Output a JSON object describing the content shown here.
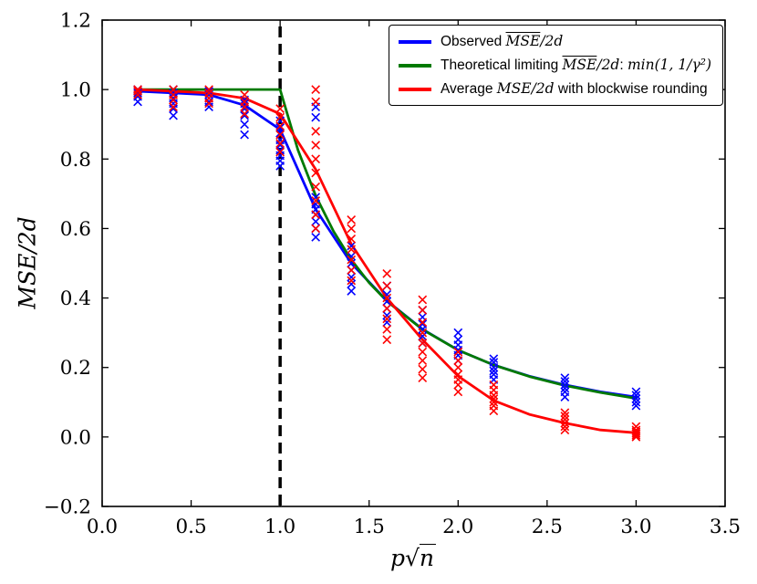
{
  "figure": {
    "background": "#ffffff"
  },
  "chart_data": {
    "type": "line",
    "title": "",
    "xlabel_parts": {
      "var": "p",
      "radical": "√",
      "radicand": "n"
    },
    "ylabel": "MSE/2d",
    "xlim": [
      0,
      3.5
    ],
    "ylim": [
      -0.2,
      1.2
    ],
    "xticks": [
      0,
      0.5,
      1.0,
      1.5,
      2.0,
      2.5,
      3.0,
      3.5
    ],
    "xtick_labels": [
      "0.0",
      "0.5",
      "1.0",
      "1.5",
      "2.0",
      "2.5",
      "3.0",
      "3.5"
    ],
    "yticks": [
      -0.2,
      0.0,
      0.2,
      0.4,
      0.6,
      0.8,
      1.0,
      1.2
    ],
    "ytick_labels": [
      "−0.2",
      "0.0",
      "0.2",
      "0.4",
      "0.6",
      "0.8",
      "1.0",
      "1.2"
    ],
    "grid": false,
    "vline": {
      "x": 1.0,
      "color": "#000000",
      "style": "dashed",
      "width": 3.5
    },
    "series": [
      {
        "name": "observed",
        "color": "#0000ff",
        "width": 2.8,
        "points": [
          [
            0.2,
            0.995
          ],
          [
            0.4,
            0.99
          ],
          [
            0.6,
            0.985
          ],
          [
            0.8,
            0.955
          ],
          [
            1.0,
            0.885
          ],
          [
            1.2,
            0.655
          ],
          [
            1.4,
            0.5
          ],
          [
            1.6,
            0.392
          ],
          [
            1.8,
            0.31
          ],
          [
            2.0,
            0.25
          ],
          [
            2.2,
            0.207
          ],
          [
            2.4,
            0.175
          ],
          [
            2.6,
            0.15
          ],
          [
            2.8,
            0.13
          ],
          [
            3.0,
            0.115
          ]
        ]
      },
      {
        "name": "theoretical",
        "color": "#007a00",
        "width": 2.8,
        "points": [
          [
            0.2,
            1.0
          ],
          [
            0.4,
            1.0
          ],
          [
            0.6,
            1.0
          ],
          [
            0.8,
            1.0
          ],
          [
            1.0,
            1.0
          ],
          [
            1.1,
            0.826
          ],
          [
            1.2,
            0.694
          ],
          [
            1.3,
            0.592
          ],
          [
            1.4,
            0.51
          ],
          [
            1.5,
            0.444
          ],
          [
            1.6,
            0.391
          ],
          [
            1.8,
            0.309
          ],
          [
            2.0,
            0.25
          ],
          [
            2.2,
            0.207
          ],
          [
            2.4,
            0.174
          ],
          [
            2.6,
            0.148
          ],
          [
            2.8,
            0.128
          ],
          [
            3.0,
            0.111
          ]
        ]
      },
      {
        "name": "blockwise-rounding",
        "color": "#ff0000",
        "width": 2.8,
        "points": [
          [
            0.2,
            1.0
          ],
          [
            0.4,
            0.995
          ],
          [
            0.6,
            0.99
          ],
          [
            0.8,
            0.975
          ],
          [
            1.0,
            0.93
          ],
          [
            1.2,
            0.77
          ],
          [
            1.4,
            0.555
          ],
          [
            1.6,
            0.4
          ],
          [
            1.8,
            0.28
          ],
          [
            2.0,
            0.175
          ],
          [
            2.2,
            0.105
          ],
          [
            2.4,
            0.065
          ],
          [
            2.6,
            0.04
          ],
          [
            2.8,
            0.02
          ],
          [
            3.0,
            0.012
          ]
        ]
      }
    ],
    "scatter": [
      {
        "name": "observed-samples",
        "color": "#0000ff",
        "marker": "x",
        "points": [
          [
            0.2,
            0.965
          ],
          [
            0.2,
            0.98
          ],
          [
            0.2,
            0.99
          ],
          [
            0.2,
            0.995
          ],
          [
            0.2,
            1.0
          ],
          [
            0.4,
            0.925
          ],
          [
            0.4,
            0.945
          ],
          [
            0.4,
            0.96
          ],
          [
            0.4,
            0.975
          ],
          [
            0.4,
            0.99
          ],
          [
            0.4,
            1.0
          ],
          [
            0.6,
            0.95
          ],
          [
            0.6,
            0.965
          ],
          [
            0.6,
            0.975
          ],
          [
            0.6,
            0.985
          ],
          [
            0.6,
            0.995
          ],
          [
            0.8,
            0.87
          ],
          [
            0.8,
            0.9
          ],
          [
            0.8,
            0.925
          ],
          [
            0.8,
            0.945
          ],
          [
            0.8,
            0.96
          ],
          [
            0.8,
            0.97
          ],
          [
            1.0,
            0.78
          ],
          [
            1.0,
            0.795
          ],
          [
            1.0,
            0.81
          ],
          [
            1.0,
            0.825
          ],
          [
            1.0,
            0.84
          ],
          [
            1.0,
            0.855
          ],
          [
            1.0,
            0.875
          ],
          [
            1.0,
            0.89
          ],
          [
            1.0,
            0.91
          ],
          [
            1.2,
            0.575
          ],
          [
            1.2,
            0.6
          ],
          [
            1.2,
            0.62
          ],
          [
            1.2,
            0.64
          ],
          [
            1.2,
            0.655
          ],
          [
            1.2,
            0.67
          ],
          [
            1.2,
            0.69
          ],
          [
            1.2,
            0.92
          ],
          [
            1.2,
            0.95
          ],
          [
            1.4,
            0.42
          ],
          [
            1.4,
            0.44
          ],
          [
            1.4,
            0.46
          ],
          [
            1.4,
            0.48
          ],
          [
            1.4,
            0.5
          ],
          [
            1.4,
            0.52
          ],
          [
            1.4,
            0.55
          ],
          [
            1.6,
            0.33
          ],
          [
            1.6,
            0.35
          ],
          [
            1.6,
            0.37
          ],
          [
            1.6,
            0.39
          ],
          [
            1.6,
            0.41
          ],
          [
            1.6,
            0.435
          ],
          [
            1.8,
            0.27
          ],
          [
            1.8,
            0.29
          ],
          [
            1.8,
            0.31
          ],
          [
            1.8,
            0.325
          ],
          [
            1.8,
            0.345
          ],
          [
            1.8,
            0.365
          ],
          [
            2.0,
            0.22
          ],
          [
            2.0,
            0.235
          ],
          [
            2.0,
            0.25
          ],
          [
            2.0,
            0.265
          ],
          [
            2.0,
            0.28
          ],
          [
            2.0,
            0.3
          ],
          [
            2.2,
            0.165
          ],
          [
            2.2,
            0.18
          ],
          [
            2.2,
            0.19
          ],
          [
            2.2,
            0.2
          ],
          [
            2.2,
            0.215
          ],
          [
            2.2,
            0.225
          ],
          [
            2.6,
            0.115
          ],
          [
            2.6,
            0.13
          ],
          [
            2.6,
            0.14
          ],
          [
            2.6,
            0.15
          ],
          [
            2.6,
            0.16
          ],
          [
            2.6,
            0.17
          ],
          [
            3.0,
            0.09
          ],
          [
            3.0,
            0.1
          ],
          [
            3.0,
            0.11
          ],
          [
            3.0,
            0.12
          ],
          [
            3.0,
            0.13
          ]
        ]
      },
      {
        "name": "blockwise-samples",
        "color": "#ff0000",
        "marker": "x",
        "points": [
          [
            0.2,
            0.985
          ],
          [
            0.2,
            0.995
          ],
          [
            0.2,
            1.0
          ],
          [
            0.4,
            0.95
          ],
          [
            0.4,
            0.97
          ],
          [
            0.4,
            0.985
          ],
          [
            0.4,
            1.0
          ],
          [
            0.6,
            0.96
          ],
          [
            0.6,
            0.975
          ],
          [
            0.6,
            0.99
          ],
          [
            0.6,
            1.0
          ],
          [
            0.8,
            0.93
          ],
          [
            0.8,
            0.95
          ],
          [
            0.8,
            0.965
          ],
          [
            0.8,
            0.985
          ],
          [
            1.0,
            0.82
          ],
          [
            1.0,
            0.845
          ],
          [
            1.0,
            0.87
          ],
          [
            1.0,
            0.895
          ],
          [
            1.0,
            0.92
          ],
          [
            1.0,
            0.945
          ],
          [
            1.2,
            0.6
          ],
          [
            1.2,
            0.64
          ],
          [
            1.2,
            0.68
          ],
          [
            1.2,
            0.72
          ],
          [
            1.2,
            0.76
          ],
          [
            1.2,
            0.8
          ],
          [
            1.2,
            0.84
          ],
          [
            1.2,
            0.88
          ],
          [
            1.2,
            0.965
          ],
          [
            1.2,
            1.0
          ],
          [
            1.4,
            0.45
          ],
          [
            1.4,
            0.48
          ],
          [
            1.4,
            0.51
          ],
          [
            1.4,
            0.54
          ],
          [
            1.4,
            0.57
          ],
          [
            1.4,
            0.6
          ],
          [
            1.4,
            0.625
          ],
          [
            1.6,
            0.28
          ],
          [
            1.6,
            0.31
          ],
          [
            1.6,
            0.34
          ],
          [
            1.6,
            0.37
          ],
          [
            1.6,
            0.4
          ],
          [
            1.6,
            0.435
          ],
          [
            1.6,
            0.47
          ],
          [
            1.8,
            0.17
          ],
          [
            1.8,
            0.195
          ],
          [
            1.8,
            0.22
          ],
          [
            1.8,
            0.245
          ],
          [
            1.8,
            0.27
          ],
          [
            1.8,
            0.3
          ],
          [
            1.8,
            0.33
          ],
          [
            1.8,
            0.365
          ],
          [
            1.8,
            0.395
          ],
          [
            2.0,
            0.13
          ],
          [
            2.0,
            0.15
          ],
          [
            2.0,
            0.165
          ],
          [
            2.0,
            0.18
          ],
          [
            2.0,
            0.2
          ],
          [
            2.0,
            0.22
          ],
          [
            2.0,
            0.245
          ],
          [
            2.2,
            0.075
          ],
          [
            2.2,
            0.09
          ],
          [
            2.2,
            0.1
          ],
          [
            2.2,
            0.11
          ],
          [
            2.2,
            0.12
          ],
          [
            2.2,
            0.135
          ],
          [
            2.2,
            0.15
          ],
          [
            2.6,
            0.02
          ],
          [
            2.6,
            0.03
          ],
          [
            2.6,
            0.04
          ],
          [
            2.6,
            0.05
          ],
          [
            2.6,
            0.06
          ],
          [
            2.6,
            0.07
          ],
          [
            3.0,
            0.0
          ],
          [
            3.0,
            0.005
          ],
          [
            3.0,
            0.01
          ],
          [
            3.0,
            0.015
          ],
          [
            3.0,
            0.02
          ],
          [
            3.0,
            0.03
          ]
        ]
      }
    ],
    "legend": {
      "position": "upper right",
      "items": [
        {
          "color": "#0000ff",
          "parts": [
            {
              "t": "Observed ",
              "s": "plain"
            },
            {
              "t": "MSE",
              "s": "omath"
            },
            {
              "t": "/2d",
              "s": "math"
            }
          ]
        },
        {
          "color": "#007a00",
          "parts": [
            {
              "t": "Theoretical limiting ",
              "s": "plain"
            },
            {
              "t": "MSE",
              "s": "omath"
            },
            {
              "t": "/2d",
              "s": "math"
            },
            {
              "t": ": ",
              "s": "plain"
            },
            {
              "t": "min(1, 1/γ²)",
              "s": "math"
            }
          ]
        },
        {
          "color": "#ff0000",
          "parts": [
            {
              "t": "Average ",
              "s": "plain"
            },
            {
              "t": "MSE/2d",
              "s": "math"
            },
            {
              "t": " with blockwise rounding",
              "s": "plain"
            }
          ]
        }
      ]
    }
  }
}
